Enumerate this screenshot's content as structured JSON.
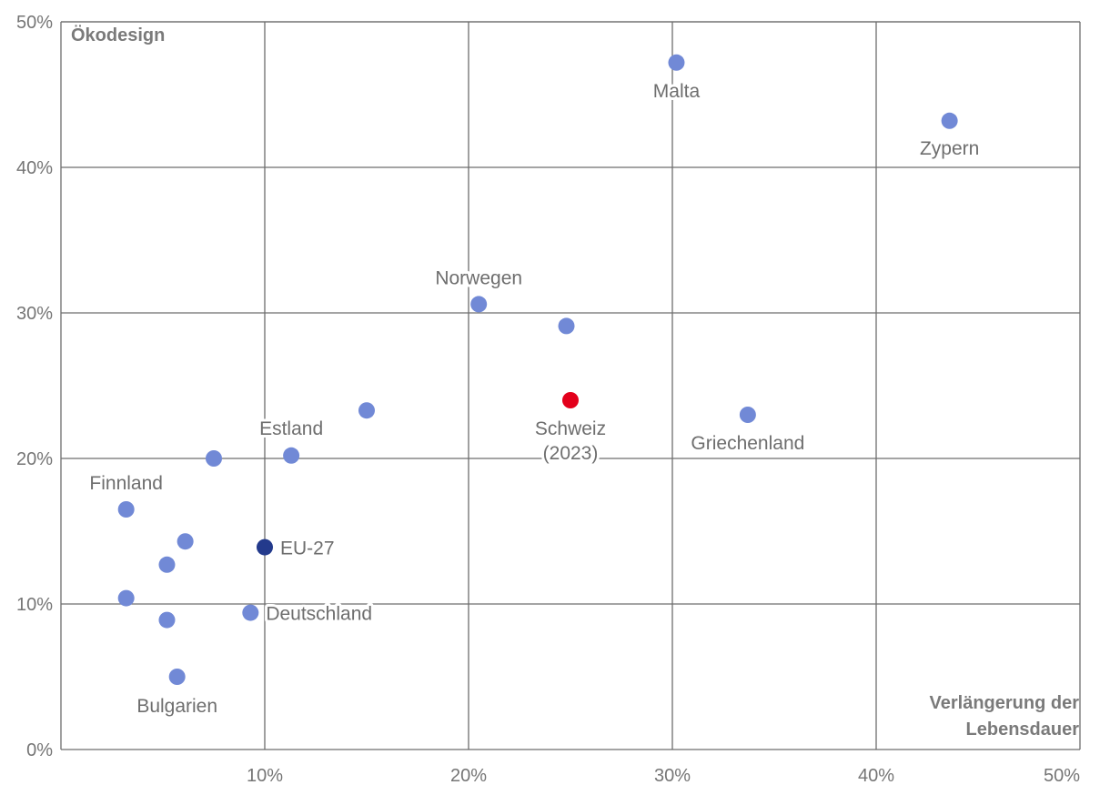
{
  "chart_data": {
    "type": "scatter",
    "xlabel": "Verlängerung der Lebensdauer",
    "ylabel": "Ökodesign",
    "xlim": [
      0,
      50
    ],
    "ylim": [
      0,
      50
    ],
    "x_ticks": [
      "10%",
      "20%",
      "30%",
      "40%",
      "50%"
    ],
    "y_ticks": [
      "0%",
      "10%",
      "20%",
      "30%",
      "40%",
      "50%"
    ],
    "grid": true,
    "colors": {
      "country": "#7189d6",
      "eu": "#233a8c",
      "switzerland": "#e3001b",
      "grid": "#6e6e6e",
      "label": "#6e6e6e"
    },
    "points": [
      {
        "x": 30.2,
        "y": 47.2,
        "label": "Malta",
        "kind": "country"
      },
      {
        "x": 43.6,
        "y": 43.2,
        "label": "Zypern",
        "kind": "country"
      },
      {
        "x": 20.5,
        "y": 30.6,
        "label": "Norwegen",
        "kind": "country"
      },
      {
        "x": 24.8,
        "y": 29.1,
        "label": "",
        "kind": "country"
      },
      {
        "x": 25.0,
        "y": 24.0,
        "label": "Schweiz",
        "label2": "(2023)",
        "kind": "switzerland"
      },
      {
        "x": 33.7,
        "y": 23.0,
        "label": "Griechenland",
        "kind": "country"
      },
      {
        "x": 15.0,
        "y": 23.3,
        "label": "",
        "kind": "country"
      },
      {
        "x": 11.3,
        "y": 20.2,
        "label": "Estland",
        "kind": "country"
      },
      {
        "x": 7.5,
        "y": 20.0,
        "label": "",
        "kind": "country"
      },
      {
        "x": 3.2,
        "y": 16.5,
        "label": "Finnland",
        "kind": "country"
      },
      {
        "x": 6.1,
        "y": 14.3,
        "label": "",
        "kind": "country"
      },
      {
        "x": 10.0,
        "y": 13.9,
        "label": "EU-27",
        "kind": "eu"
      },
      {
        "x": 5.2,
        "y": 12.7,
        "label": "",
        "kind": "country"
      },
      {
        "x": 3.2,
        "y": 10.4,
        "label": "",
        "kind": "country"
      },
      {
        "x": 9.3,
        "y": 9.4,
        "label": "Deutschland",
        "kind": "country"
      },
      {
        "x": 5.2,
        "y": 8.9,
        "label": "",
        "kind": "country"
      },
      {
        "x": 5.7,
        "y": 5.0,
        "label": "Bulgarien",
        "kind": "country"
      }
    ]
  }
}
